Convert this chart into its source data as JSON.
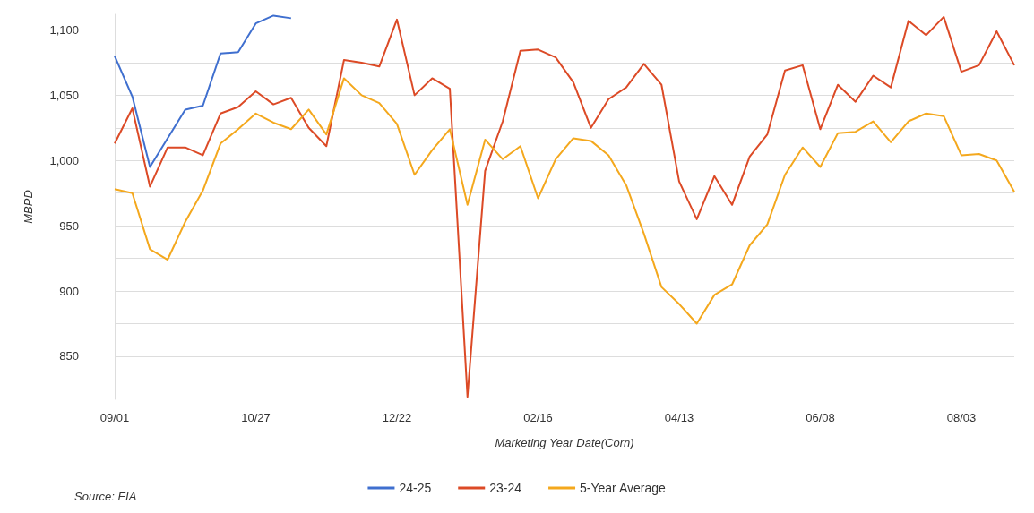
{
  "chart_data": {
    "type": "line",
    "xlabel": "Marketing Year Date(Corn)",
    "ylabel": "MBPD",
    "annotations": [
      "Source: EIA"
    ],
    "categories": [
      "09/01",
      null,
      null,
      null,
      null,
      null,
      null,
      null,
      "10/27",
      null,
      null,
      null,
      null,
      null,
      null,
      null,
      "12/22",
      null,
      null,
      null,
      null,
      null,
      null,
      null,
      "02/16",
      null,
      null,
      null,
      null,
      null,
      null,
      null,
      "04/13",
      null,
      null,
      null,
      null,
      null,
      null,
      null,
      "06/08",
      null,
      null,
      null,
      null,
      null,
      null,
      null,
      "08/03",
      null,
      null,
      null
    ],
    "series": [
      {
        "name": "24-25",
        "color": "#3f6fcf",
        "values": [
          1080,
          1049,
          995,
          1017,
          1039,
          1042,
          1082,
          1083,
          1105,
          1111,
          1109,
          null,
          null,
          null,
          null,
          null,
          null,
          null,
          null,
          null,
          null,
          null,
          null,
          null,
          null,
          null,
          null,
          null,
          null,
          null,
          null,
          null,
          null,
          null,
          null,
          null,
          null,
          null,
          null,
          null,
          null,
          null,
          null,
          null,
          null,
          null,
          null,
          null,
          null,
          null,
          null,
          null
        ]
      },
      {
        "name": "23-24",
        "color": "#dc4a26",
        "values": [
          1013,
          1040,
          980,
          1010,
          1010,
          1004,
          1036,
          1041,
          1053,
          1043,
          1048,
          1025,
          1011,
          1077,
          1075,
          1072,
          1108,
          1050,
          1063,
          1055,
          819,
          992,
          1030,
          1084,
          1085,
          1079,
          1060,
          1025,
          1047,
          1056,
          1074,
          1058,
          984,
          955,
          988,
          966,
          1003,
          1020,
          1069,
          1073,
          1024,
          1058,
          1045,
          1065,
          1056,
          1107,
          1096,
          1110,
          1068,
          1073,
          1099,
          1073
        ]
      },
      {
        "name": "5-Year Average",
        "color": "#f4a81d",
        "values": [
          978,
          975,
          932,
          924,
          953,
          977,
          1013,
          1024,
          1036,
          1029,
          1024,
          1039,
          1020,
          1063,
          1050,
          1044,
          1028,
          989,
          1008,
          1024,
          966,
          1016,
          1001,
          1011,
          971,
          1001,
          1017,
          1015,
          1004,
          981,
          944,
          903,
          890,
          875,
          897,
          905,
          935,
          951,
          989,
          1010,
          995,
          1021,
          1022,
          1030,
          1014,
          1030,
          1036,
          1034,
          1004,
          1005,
          1000,
          976
        ]
      }
    ],
    "ylim": [
      817,
      1112
    ],
    "yticks": [
      {
        "value": 825,
        "label": null
      },
      850,
      {
        "value": 875,
        "label": null
      },
      900,
      {
        "value": 925,
        "label": null
      },
      950,
      {
        "value": 975,
        "label": null
      },
      {
        "value": 1000,
        "label": "1,000"
      },
      {
        "value": 1025,
        "label": null
      },
      {
        "value": 1050,
        "label": "1,050"
      },
      {
        "value": 1075,
        "label": null
      },
      {
        "value": 1100,
        "label": "1,100"
      }
    ],
    "grid": "y",
    "legend": "bottom",
    "marker": "none",
    "line_style": "solid"
  }
}
